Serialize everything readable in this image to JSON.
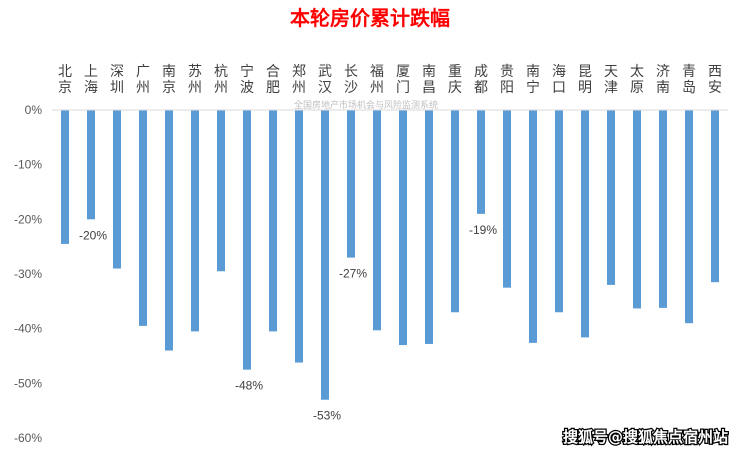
{
  "chart_data": {
    "type": "bar",
    "title": "本轮房价累计跌幅",
    "subtitle": "全国房地产市场机会与风险监测系统",
    "categories": [
      "北京",
      "上海",
      "深圳",
      "广州",
      "南京",
      "苏州",
      "杭州",
      "宁波",
      "合肥",
      "郑州",
      "武汉",
      "长沙",
      "福州",
      "厦门",
      "南昌",
      "重庆",
      "成都",
      "贵阳",
      "南宁",
      "海口",
      "昆明",
      "天津",
      "太原",
      "济南",
      "青岛",
      "西安"
    ],
    "values": [
      -24.5,
      -20,
      -29,
      -39.5,
      -44,
      -40.5,
      -29.5,
      -47.5,
      -40.5,
      -46.2,
      -53,
      -27,
      -40.3,
      -43,
      -42.8,
      -37,
      -19,
      -32.5,
      -42.6,
      -37,
      -41.6,
      -32,
      -36.3,
      -36.2,
      -39,
      -31.5
    ],
    "data_labels": [
      {
        "category": "上海",
        "text": "-20%"
      },
      {
        "category": "宁波",
        "text": "-48%"
      },
      {
        "category": "武汉",
        "text": "-53%"
      },
      {
        "category": "长沙",
        "text": "-27%"
      },
      {
        "category": "成都",
        "text": "-19%"
      }
    ],
    "y_ticks": [
      0,
      -10,
      -20,
      -30,
      -40,
      -50,
      -60
    ],
    "y_tick_labels": [
      "0%",
      "-10%",
      "-20%",
      "-30%",
      "-40%",
      "-50%",
      "-60%"
    ],
    "ylim": [
      -60,
      0
    ],
    "xlabel": "",
    "ylabel": "",
    "grid": false,
    "legend": "none",
    "colors": {
      "bar": "#5b9bd5",
      "title": "#ff0000",
      "axis": "#d9d9d9",
      "tick_text": "#595959",
      "category_text": "#404040",
      "label_text": "#404040",
      "watermark": "#bfbfbf",
      "credit": "#ffffff"
    }
  },
  "footer": {
    "credit": "搜狐号@搜狐焦点宿州站"
  }
}
